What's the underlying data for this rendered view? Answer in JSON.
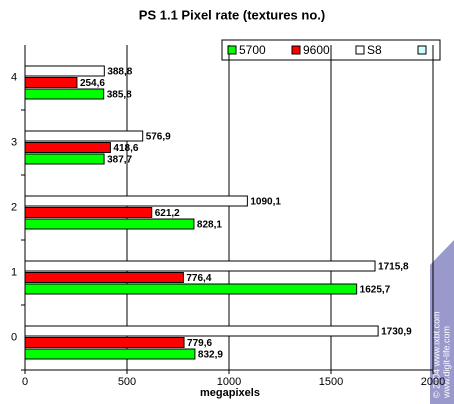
{
  "chart_data": {
    "type": "hbar",
    "title": "PS 1.1 Pixel rate (textures no.)",
    "x_label": "megapixels",
    "categories": [
      "0",
      "1",
      "2",
      "3",
      "4"
    ],
    "series": [
      {
        "name": "5700",
        "color": "#00ff00",
        "values": [
          832.9,
          1625.7,
          828.1,
          387.7,
          385.8
        ],
        "value_labels": [
          "832,9",
          "1625,7",
          "828,1",
          "387,7",
          "385,8"
        ]
      },
      {
        "name": "9600",
        "color": "#ff0000",
        "values": [
          779.6,
          776.4,
          621.2,
          418.6,
          254.6
        ],
        "value_labels": [
          "779,6",
          "776,4",
          "621,2",
          "418,6",
          "254,6"
        ]
      },
      {
        "name": "S8",
        "color": "#ffffff",
        "values": [
          1730.9,
          1715.8,
          1090.1,
          576.9,
          388.8
        ],
        "value_labels": [
          "1730,9",
          "1715,8",
          "1090,1",
          "576,9",
          "388,8"
        ]
      }
    ],
    "xlim": [
      0,
      2000
    ],
    "xticks": [
      0,
      500,
      1000,
      1500,
      2000
    ],
    "grid": true,
    "watermark": [
      "© 2004 www.ixbt.com",
      "www.digit-life.com"
    ]
  }
}
